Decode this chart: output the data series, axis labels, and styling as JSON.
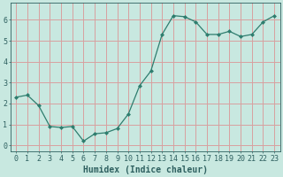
{
  "x": [
    0,
    1,
    2,
    3,
    4,
    5,
    6,
    7,
    8,
    9,
    10,
    11,
    12,
    13,
    14,
    15,
    16,
    17,
    18,
    19,
    20,
    21,
    22,
    23
  ],
  "y": [
    2.3,
    2.4,
    1.9,
    0.9,
    0.85,
    0.9,
    0.2,
    0.55,
    0.6,
    0.8,
    1.5,
    2.85,
    3.55,
    5.3,
    6.2,
    6.15,
    5.9,
    5.3,
    5.3,
    5.45,
    5.2,
    5.3,
    5.9,
    6.2
  ],
  "line_color": "#2e7d6e",
  "marker": "D",
  "marker_size": 2.0,
  "bg_color": "#c8e8e0",
  "grid_color": "#d8a0a0",
  "xlabel": "Humidex (Indice chaleur)",
  "ylim": [
    -0.3,
    6.8
  ],
  "xlim": [
    -0.5,
    23.5
  ],
  "yticks": [
    0,
    1,
    2,
    3,
    4,
    5,
    6
  ],
  "xticks": [
    0,
    1,
    2,
    3,
    4,
    5,
    6,
    7,
    8,
    9,
    10,
    11,
    12,
    13,
    14,
    15,
    16,
    17,
    18,
    19,
    20,
    21,
    22,
    23
  ],
  "xlabel_fontsize": 7,
  "tick_fontsize": 6,
  "tick_color": "#2e6060",
  "axis_color": "#2e6060",
  "linewidth": 0.9
}
